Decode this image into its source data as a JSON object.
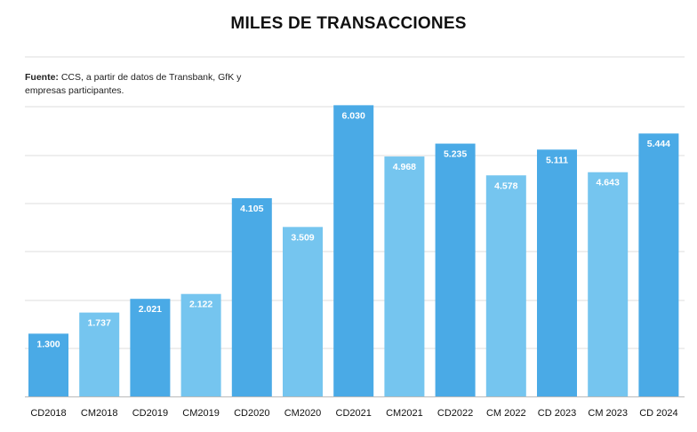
{
  "chart_data": {
    "type": "bar",
    "title": "MILES DE TRANSACCIONES",
    "source_label": "Fuente:",
    "source_text": "CCS, a partir de datos de Transbank, GfK y empresas participantes.",
    "xlabel": "",
    "ylabel": "",
    "ylim": [
      0,
      6000
    ],
    "grid": true,
    "categories": [
      "CD2018",
      "CM2018",
      "CD2019",
      "CM2019",
      "CD2020",
      "CM2020",
      "CD2021",
      "CM2021",
      "CD2022",
      "CM 2022",
      "CD 2023",
      "CM 2023",
      "CD 2024"
    ],
    "values": [
      1300,
      1737,
      2021,
      2122,
      4105,
      3509,
      6030,
      4968,
      5235,
      4578,
      5111,
      4643,
      5444
    ],
    "value_labels": [
      "1.300",
      "1.737",
      "2.021",
      "2.122",
      "4.105",
      "3.509",
      "6.030",
      "4.968",
      "5.235",
      "4.578",
      "5.111",
      "4.643",
      "5.444"
    ],
    "colors": {
      "CD": "#4aaae6",
      "CM": "#75c5ef",
      "grid": "#dcdcdc",
      "axis": "#bbbbbb"
    }
  }
}
